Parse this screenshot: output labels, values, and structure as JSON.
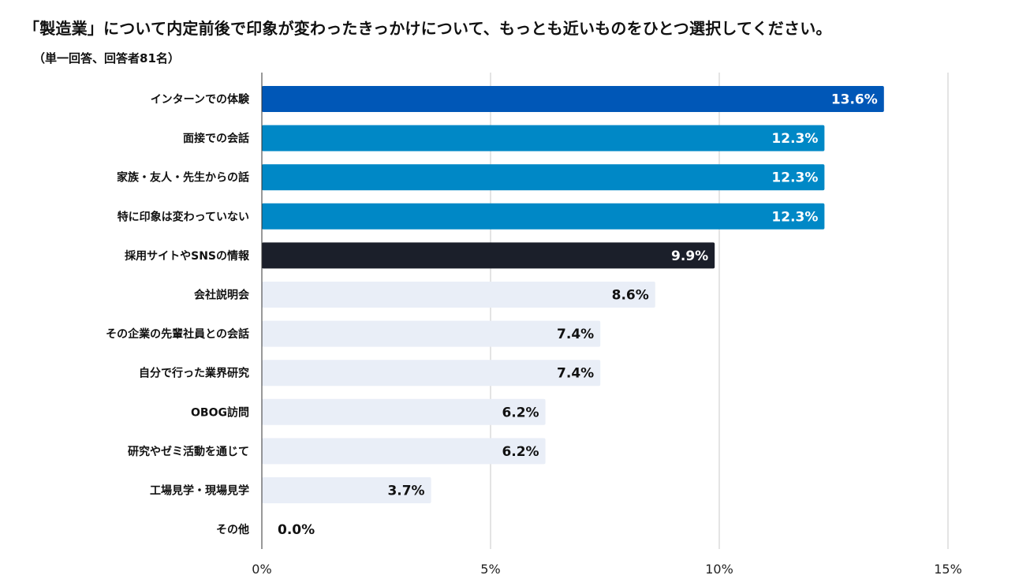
{
  "title": "「製造業」について内定前後で印象が変わったきっかけについて、もっとも近いものをひとつ選択してください。",
  "subtitle": "（単一回答、回答者81名）",
  "chart_data": {
    "type": "bar",
    "orientation": "horizontal",
    "categories": [
      "インターンでの体験",
      "面接での会話",
      "家族・友人・先生からの話",
      "特に印象は変わっていない",
      "採用サイトやSNSの情報",
      "会社説明会",
      "その企業の先輩社員との会話",
      "自分で行った業界研究",
      "OBOG訪問",
      "研究やゼミ活動を通じて",
      "工場見学・現場見学",
      "その他"
    ],
    "values": [
      13.6,
      12.3,
      12.3,
      12.3,
      9.9,
      8.6,
      7.4,
      7.4,
      6.2,
      6.2,
      3.7,
      0.0
    ],
    "value_labels": [
      "13.6%",
      "12.3%",
      "12.3%",
      "12.3%",
      "9.9%",
      "8.6%",
      "7.4%",
      "7.4%",
      "6.2%",
      "6.2%",
      "3.7%",
      "0.0%"
    ],
    "bar_colors": [
      "#0057b7",
      "#0088c6",
      "#0088c6",
      "#0088c6",
      "#1b1f2a",
      "#e9eef7",
      "#e9eef7",
      "#e9eef7",
      "#e9eef7",
      "#e9eef7",
      "#e9eef7",
      "#e9eef7"
    ],
    "label_colors": [
      "#ffffff",
      "#ffffff",
      "#ffffff",
      "#ffffff",
      "#ffffff",
      "#111111",
      "#111111",
      "#111111",
      "#111111",
      "#111111",
      "#111111",
      "#111111"
    ],
    "xlim": [
      0,
      15
    ],
    "xticks": [
      0,
      5,
      10,
      15
    ],
    "xtick_labels": [
      "0%",
      "5%",
      "10%",
      "15%"
    ],
    "grid": true,
    "legend": "none"
  }
}
